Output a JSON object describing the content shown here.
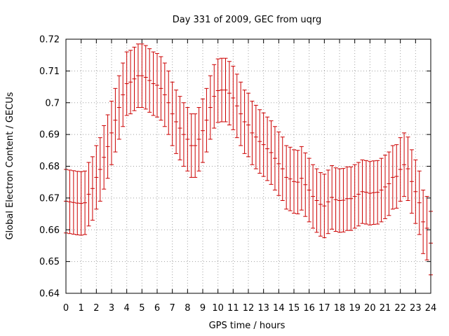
{
  "colors": {
    "series": "#cc0000",
    "grid": "#a0a0a0",
    "axis": "#000000"
  },
  "chart_data": {
    "type": "errorbar",
    "title": "Day 331 of 2009, GEC from uqrg",
    "xlabel": "GPS time / hours",
    "ylabel": "Global Electron Content / GECUs",
    "xlim": [
      0,
      24
    ],
    "ylim": [
      0.64,
      0.72
    ],
    "xticks": [
      0,
      1,
      2,
      3,
      4,
      5,
      6,
      7,
      8,
      9,
      10,
      11,
      12,
      13,
      14,
      15,
      16,
      17,
      18,
      19,
      20,
      21,
      22,
      23,
      24
    ],
    "xtick_labels": [
      "0",
      "1",
      "2",
      "3",
      "4",
      "5",
      "6",
      "7",
      "8",
      "9",
      "10",
      "11",
      "12",
      "13",
      "14",
      "15",
      "16",
      "17",
      "18",
      "19",
      "20",
      "21",
      "22",
      "23",
      "24"
    ],
    "yticks": [
      0.64,
      0.65,
      0.66,
      0.67,
      0.68,
      0.69,
      0.7,
      0.71,
      0.72
    ],
    "ytick_labels": [
      "0.64",
      "0.65",
      "0.66",
      "0.67",
      "0.68",
      "0.69",
      "0.7",
      "0.71",
      "0.72"
    ],
    "grid": true,
    "error": 0.01,
    "series": [
      {
        "name": "GEC",
        "x": [
          0,
          0.25,
          0.5,
          0.75,
          1,
          1.25,
          1.5,
          1.75,
          2,
          2.25,
          2.5,
          2.75,
          3,
          3.25,
          3.5,
          3.75,
          4,
          4.25,
          4.5,
          4.75,
          5,
          5.25,
          5.5,
          5.75,
          6,
          6.25,
          6.5,
          6.75,
          7,
          7.25,
          7.5,
          7.75,
          8,
          8.25,
          8.5,
          8.75,
          9,
          9.25,
          9.5,
          9.75,
          10,
          10.25,
          10.5,
          10.75,
          11,
          11.25,
          11.5,
          11.75,
          12,
          12.25,
          12.5,
          12.75,
          13,
          13.25,
          13.5,
          13.75,
          14,
          14.25,
          14.5,
          14.75,
          15,
          15.25,
          15.5,
          15.75,
          16,
          16.25,
          16.5,
          16.75,
          17,
          17.25,
          17.5,
          17.75,
          18,
          18.25,
          18.5,
          18.75,
          19,
          19.25,
          19.5,
          19.75,
          20,
          20.25,
          20.5,
          20.75,
          21,
          21.25,
          21.5,
          21.75,
          22,
          22.25,
          22.5,
          22.75,
          23,
          23.25,
          23.5,
          23.75,
          24
        ],
        "y": [
          0.669,
          0.6688,
          0.6686,
          0.6684,
          0.6683,
          0.6685,
          0.6712,
          0.673,
          0.6765,
          0.679,
          0.6828,
          0.6862,
          0.6905,
          0.6945,
          0.6985,
          0.7025,
          0.706,
          0.7065,
          0.7075,
          0.7085,
          0.7085,
          0.708,
          0.707,
          0.706,
          0.7055,
          0.7045,
          0.7025,
          0.7,
          0.6965,
          0.694,
          0.692,
          0.69,
          0.6885,
          0.6865,
          0.6865,
          0.6885,
          0.6912,
          0.6945,
          0.6985,
          0.702,
          0.7038,
          0.704,
          0.704,
          0.703,
          0.7015,
          0.699,
          0.6965,
          0.694,
          0.693,
          0.6905,
          0.6892,
          0.6878,
          0.6868,
          0.6855,
          0.6843,
          0.6825,
          0.6808,
          0.6792,
          0.6765,
          0.676,
          0.6752,
          0.675,
          0.6762,
          0.6742,
          0.6725,
          0.6705,
          0.6692,
          0.668,
          0.6675,
          0.6688,
          0.6702,
          0.6695,
          0.6692,
          0.6693,
          0.6698,
          0.6698,
          0.6705,
          0.6712,
          0.672,
          0.6718,
          0.6715,
          0.6717,
          0.6718,
          0.6725,
          0.6735,
          0.6745,
          0.6765,
          0.6768,
          0.679,
          0.6805,
          0.6792,
          0.6752,
          0.672,
          0.6685,
          0.6625,
          0.6605,
          0.6558
        ]
      }
    ]
  }
}
